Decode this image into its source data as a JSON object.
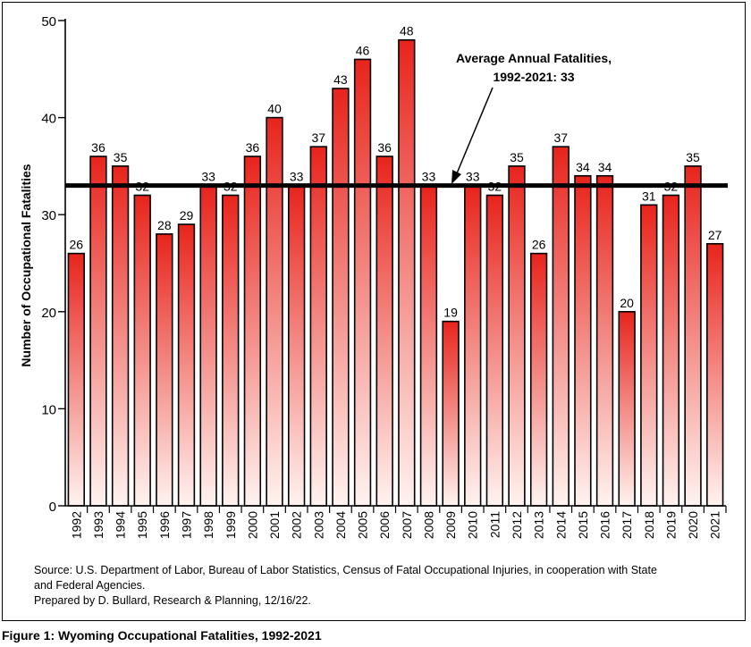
{
  "chart_data": {
    "type": "bar",
    "categories": [
      "1992",
      "1993",
      "1994",
      "1995",
      "1996",
      "1997",
      "1998",
      "1999",
      "2000",
      "2001",
      "2002",
      "2003",
      "2004",
      "2005",
      "2006",
      "2007",
      "2008",
      "2009",
      "2010",
      "2011",
      "2012",
      "2013",
      "2014",
      "2015",
      "2016",
      "2017",
      "2018",
      "2019",
      "2020",
      "2021"
    ],
    "values": [
      26,
      36,
      35,
      32,
      28,
      29,
      33,
      32,
      36,
      40,
      33,
      37,
      43,
      46,
      36,
      48,
      33,
      19,
      33,
      32,
      35,
      26,
      37,
      34,
      34,
      20,
      31,
      32,
      35,
      27
    ],
    "ylabel": "Number of Occupational Fatalities",
    "xlabel": "",
    "ylim": [
      0,
      50
    ],
    "yticks": [
      0,
      10,
      20,
      30,
      40,
      50
    ],
    "average_line": {
      "value": 33,
      "label_line1": "Average Annual Fatalities,",
      "label_line2": "1992-2021: 33"
    },
    "bar_color_top": "#e8241c",
    "bar_color_bottom": "#fff3f0",
    "grid": false
  },
  "source": {
    "line1": "Source: U.S. Department of Labor, Bureau of Labor Statistics, Census of Fatal Occupational Injuries, in cooperation with State",
    "line2": "and Federal Agencies.",
    "line3": "Prepared by D. Bullard, Research & Planning, 12/16/22."
  },
  "caption": "Figure 1: Wyoming Occupational Fatalities, 1992-2021"
}
